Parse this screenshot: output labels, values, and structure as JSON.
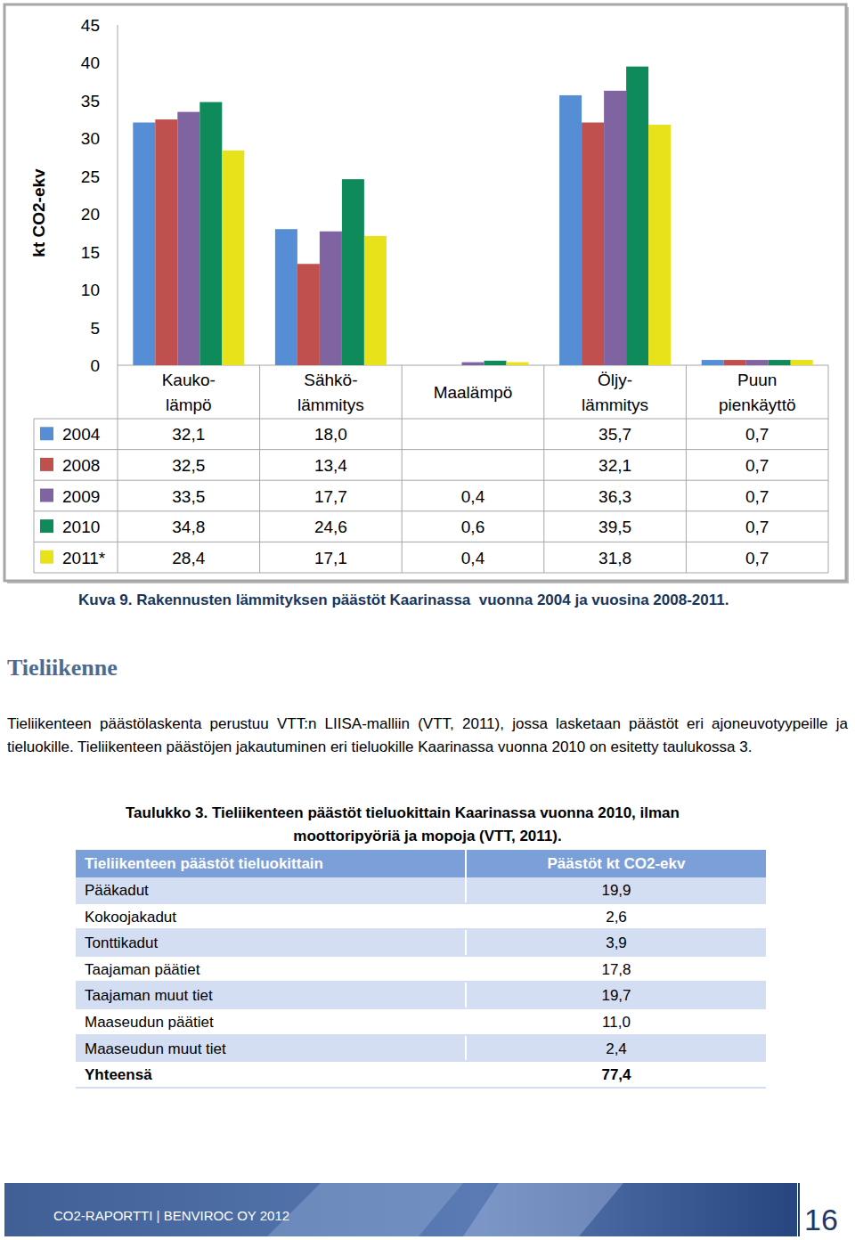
{
  "chart_data": {
    "type": "bar",
    "ylabel": "kt CO2-ekv",
    "categories": [
      "Kauko-\nlämpö",
      "Sähkö-\nlämmitys",
      "Maalämpö",
      "Öljy-\nlämmitys",
      "Puun\npienkäyttö"
    ],
    "series": [
      {
        "name": "2004",
        "color": "#558ed5",
        "values": [
          32.1,
          18.0,
          null,
          35.7,
          0.7
        ],
        "value_labels": [
          "32,1",
          "18,0",
          null,
          "35,7",
          "0,7"
        ]
      },
      {
        "name": "2008",
        "color": "#c0504d",
        "values": [
          32.5,
          13.4,
          null,
          32.1,
          0.7
        ],
        "value_labels": [
          "32,5",
          "13,4",
          null,
          "32,1",
          "0,7"
        ]
      },
      {
        "name": "2009",
        "color": "#8064a2",
        "values": [
          33.5,
          17.7,
          0.4,
          36.3,
          0.7
        ],
        "value_labels": [
          "33,5",
          "17,7",
          "0,4",
          "36,3",
          "0,7"
        ]
      },
      {
        "name": "2010",
        "color": "#0e8a5b",
        "values": [
          34.8,
          24.6,
          0.6,
          39.5,
          0.7
        ],
        "value_labels": [
          "34,8",
          "24,6",
          "0,6",
          "39,5",
          "0,7"
        ]
      },
      {
        "name": "2011*",
        "color": "#e8e21b",
        "values": [
          28.4,
          17.1,
          0.4,
          31.8,
          0.7
        ],
        "value_labels": [
          "28,4",
          "17,1",
          "0,4",
          "31,8",
          "0,7"
        ]
      }
    ],
    "ylim": [
      0,
      45
    ],
    "yticks": [
      0,
      5,
      10,
      15,
      20,
      25,
      30,
      35,
      40,
      45
    ],
    "grid": false,
    "legend": "bottom"
  },
  "figure_caption": "Kuva 9. Rakennusten lämmityksen päästöt Kaarinassa  vuonna 2004 ja vuosina 2008-2011.",
  "section": {
    "heading": "Tieliikenne",
    "paragraph": "Tieliikenteen päästölaskenta perustuu VTT:n LIISA-malliin (VTT, 2011), jossa lasketaan päästöt eri ajoneuvotyypeille ja tieluokille. Tieliikenteen päästöjen jakautuminen eri tieluokille Kaarinassa vuonna 2010 on esitetty taulukossa 3."
  },
  "table": {
    "caption_lines": [
      "Taulukko 3. Tieliikenteen päästöt tieluokittain Kaarinassa vuonna 2010, ilman",
      "moottoripyöriä ja mopoja (VTT, 2011)."
    ],
    "header": [
      "Tieliikenteen päästöt tieluokittain",
      "Päästöt kt CO2-ekv"
    ],
    "rows": [
      [
        "Pääkadut",
        "19,9"
      ],
      [
        "Kokoojakadut",
        "2,6"
      ],
      [
        "Tonttikadut",
        "3,9"
      ],
      [
        "Taajaman päätiet",
        "17,8"
      ],
      [
        "Taajaman muut tiet",
        "19,7"
      ],
      [
        "Maaseudun päätiet",
        "11,0"
      ],
      [
        "Maaseudun muut tiet",
        "2,4"
      ],
      [
        "Yhteensä",
        "77,4"
      ]
    ]
  },
  "footer": {
    "text": "CO2-RAPORTTI | BENVIROC OY 2012",
    "page": "16"
  }
}
